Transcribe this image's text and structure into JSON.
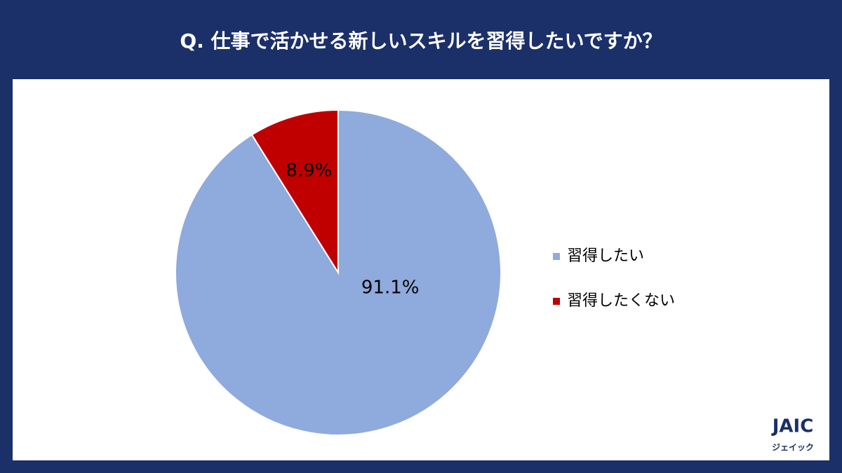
{
  "chart_data": {
    "type": "pie",
    "title": "Q. 仕事で活かせる新しいスキルを習得したいですか？",
    "categories": [
      "習得したい",
      "習得したくない"
    ],
    "values": [
      91.1,
      8.9
    ],
    "value_labels": [
      "91.1%",
      "8.9%"
    ],
    "colors": [
      "#8faadc",
      "#c00000"
    ],
    "legend": "right"
  },
  "logo": {
    "text": "JAIC",
    "subtext": "ジェイック"
  }
}
